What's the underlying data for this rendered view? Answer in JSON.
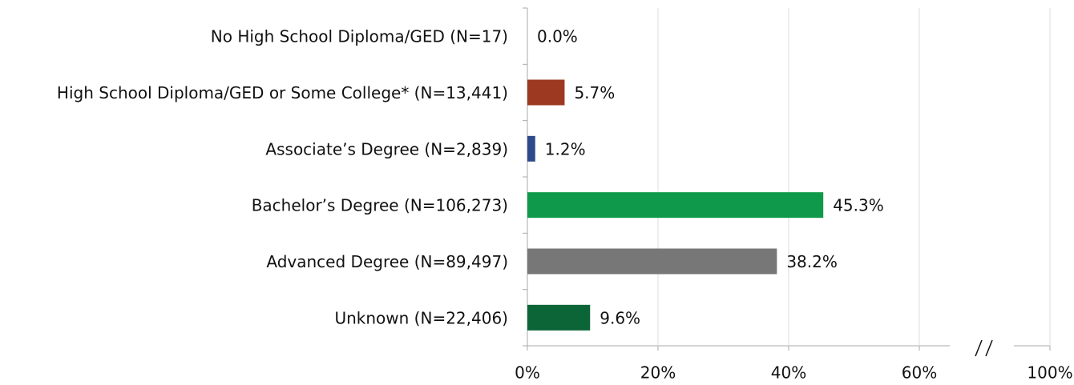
{
  "chart_data": {
    "type": "barh",
    "categories": [
      "No High School Diploma/GED (N=17)",
      "High School Diploma/GED or Some College* (N=13,441)",
      "Associate’s Degree (N=2,839)",
      "Bachelor’s Degree (N=106,273)",
      "Advanced Degree (N=89,497)",
      "Unknown (N=22,406)"
    ],
    "values": [
      0.0,
      5.7,
      1.2,
      45.3,
      38.2,
      9.6
    ],
    "value_labels": [
      "0.0%",
      "5.7%",
      "1.2%",
      "45.3%",
      "38.2%",
      "9.6%"
    ],
    "colors": [
      "#cccccc",
      "#9c3920",
      "#2d4a8a",
      "#0e9a4a",
      "#777777",
      "#0c6536"
    ],
    "xlim": [
      0,
      100
    ],
    "xticks": [
      {
        "value": 0,
        "label": "0%"
      },
      {
        "value": 20,
        "label": "20%"
      },
      {
        "value": 40,
        "label": "40%"
      },
      {
        "value": 60,
        "label": "60%"
      },
      {
        "value": 100,
        "label": "100%"
      }
    ],
    "xbreak": [
      60,
      100
    ],
    "grid": true
  }
}
